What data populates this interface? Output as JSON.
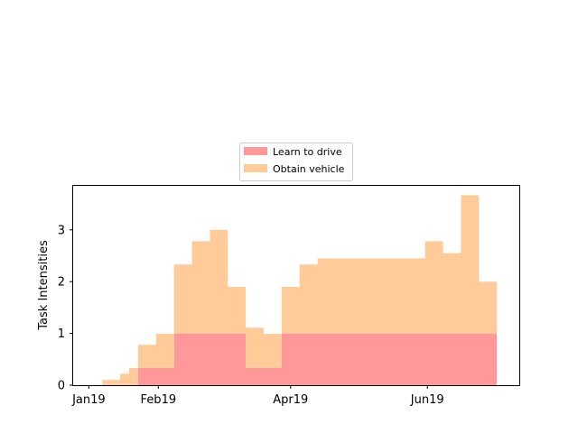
{
  "chart_data": {
    "type": "area",
    "style": "stacked-step",
    "ylabel": "Task Intensities",
    "xlabel": "",
    "ylim": [
      0,
      3.85
    ],
    "xlim": [
      "2018-12-25",
      "2019-07-12"
    ],
    "x_ticks": [
      {
        "date": "2019-01-01",
        "label": "Jan19"
      },
      {
        "date": "2019-02-01",
        "label": "Feb19"
      },
      {
        "date": "2019-04-01",
        "label": "Apr19"
      },
      {
        "date": "2019-06-01",
        "label": "Jun19"
      }
    ],
    "y_ticks": [
      0,
      1,
      2,
      3
    ],
    "legend": {
      "position": "upper-center-outside",
      "entries": [
        "Learn to drive",
        "Obtain vehicle"
      ]
    },
    "x": [
      "2019-01-03",
      "2019-01-07",
      "2019-01-11",
      "2019-01-15",
      "2019-01-19",
      "2019-01-23",
      "2019-01-27",
      "2019-01-31",
      "2019-02-04",
      "2019-02-08",
      "2019-02-12",
      "2019-02-16",
      "2019-02-20",
      "2019-02-24",
      "2019-02-28",
      "2019-03-04",
      "2019-03-08",
      "2019-03-12",
      "2019-03-16",
      "2019-03-20",
      "2019-03-24",
      "2019-03-28",
      "2019-04-01",
      "2019-04-05",
      "2019-04-09",
      "2019-04-13",
      "2019-04-17",
      "2019-04-21",
      "2019-04-25",
      "2019-04-29",
      "2019-05-03",
      "2019-05-07",
      "2019-05-11",
      "2019-05-15",
      "2019-05-19",
      "2019-05-23",
      "2019-05-27",
      "2019-05-31",
      "2019-06-04",
      "2019-06-08",
      "2019-06-12",
      "2019-06-16",
      "2019-06-20",
      "2019-06-24",
      "2019-06-28"
    ],
    "x_end": "2019-07-02",
    "series": [
      {
        "name": "Learn to drive",
        "color": "#ff9999",
        "values": [
          0,
          0,
          0,
          0,
          0,
          0.33,
          0.33,
          0.33,
          0.33,
          1,
          1,
          1,
          1,
          1,
          1,
          1,
          1,
          0.33,
          0.33,
          0.33,
          0.33,
          1,
          1,
          1,
          1,
          1,
          1,
          1,
          1,
          1,
          1,
          1,
          1,
          1,
          1,
          1,
          1,
          1,
          1,
          1,
          1,
          1,
          1,
          1,
          1
        ]
      },
      {
        "name": "Obtain vehicle",
        "color": "#ffcc99",
        "values": [
          0,
          0.1,
          0.1,
          0.22,
          0.33,
          0.45,
          0.45,
          0.66,
          0.66,
          1.33,
          1.33,
          1.78,
          1.78,
          2,
          2,
          0.9,
          0.9,
          0.78,
          0.78,
          0.66,
          0.66,
          0.9,
          0.9,
          1.33,
          1.33,
          1.45,
          1.45,
          1.45,
          1.45,
          1.45,
          1.45,
          1.45,
          1.45,
          1.45,
          1.45,
          1.45,
          1.45,
          1.78,
          1.78,
          1.55,
          1.55,
          2.67,
          2.67,
          1,
          1
        ]
      }
    ]
  }
}
